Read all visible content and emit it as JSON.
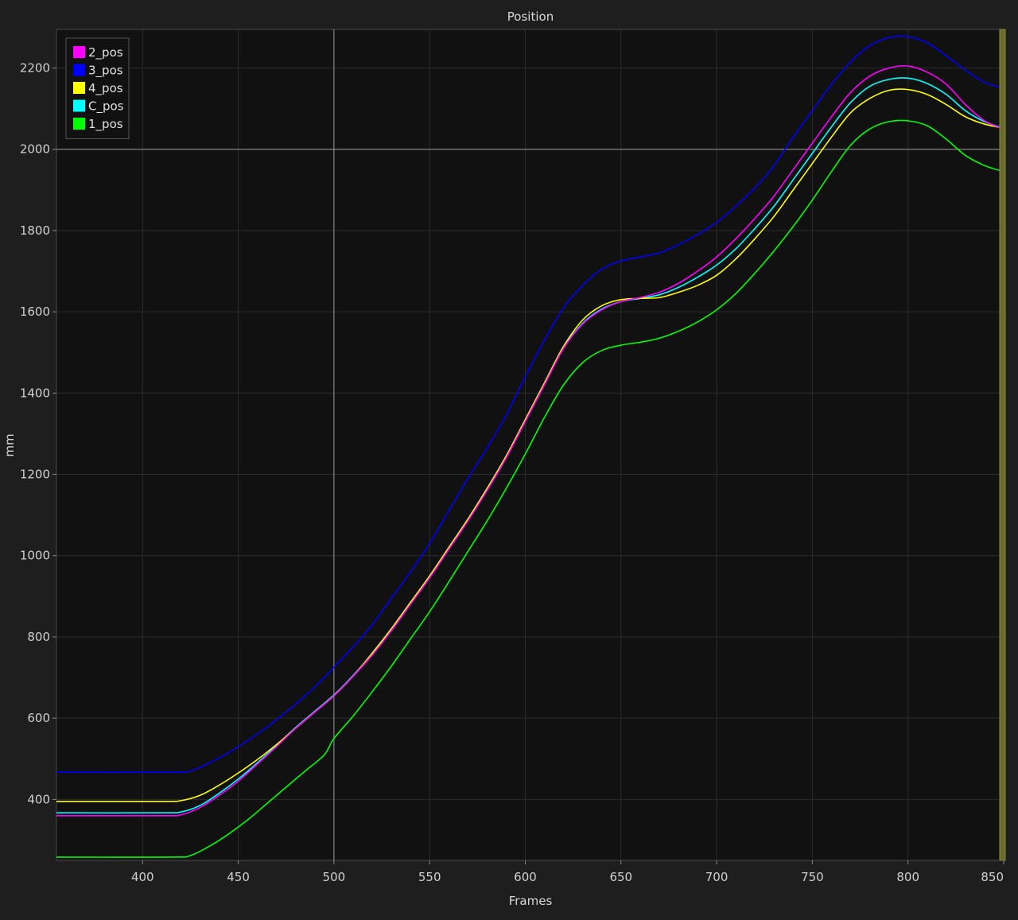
{
  "chart_data": {
    "type": "line",
    "title": "Position",
    "xlabel": "Frames",
    "ylabel": "mm",
    "xlim": [
      355,
      850
    ],
    "ylim": [
      250,
      2295
    ],
    "xticks": [
      400,
      450,
      500,
      550,
      600,
      650,
      700,
      750,
      800,
      850
    ],
    "yticks": [
      400,
      600,
      800,
      1000,
      1200,
      1400,
      1600,
      1800,
      2000,
      2200
    ],
    "grid": true,
    "legend_position": "top-left",
    "crosshair": {
      "x": 500,
      "y": 2000
    },
    "series": [
      {
        "name": "2_pos",
        "color": "#ff00ff",
        "points": [
          [
            355,
            360
          ],
          [
            410,
            360
          ],
          [
            420,
            362
          ],
          [
            430,
            380
          ],
          [
            440,
            410
          ],
          [
            450,
            445
          ],
          [
            460,
            487
          ],
          [
            470,
            530
          ],
          [
            480,
            575
          ],
          [
            490,
            615
          ],
          [
            500,
            655
          ],
          [
            510,
            703
          ],
          [
            520,
            755
          ],
          [
            530,
            815
          ],
          [
            540,
            880
          ],
          [
            550,
            945
          ],
          [
            560,
            1015
          ],
          [
            570,
            1085
          ],
          [
            580,
            1160
          ],
          [
            590,
            1240
          ],
          [
            600,
            1330
          ],
          [
            610,
            1420
          ],
          [
            620,
            1510
          ],
          [
            630,
            1570
          ],
          [
            640,
            1605
          ],
          [
            650,
            1625
          ],
          [
            660,
            1635
          ],
          [
            670,
            1648
          ],
          [
            680,
            1670
          ],
          [
            690,
            1700
          ],
          [
            700,
            1735
          ],
          [
            710,
            1780
          ],
          [
            720,
            1830
          ],
          [
            730,
            1885
          ],
          [
            740,
            1950
          ],
          [
            750,
            2015
          ],
          [
            760,
            2080
          ],
          [
            770,
            2140
          ],
          [
            780,
            2180
          ],
          [
            790,
            2200
          ],
          [
            800,
            2205
          ],
          [
            810,
            2190
          ],
          [
            820,
            2160
          ],
          [
            830,
            2110
          ],
          [
            840,
            2070
          ],
          [
            850,
            2050
          ]
        ]
      },
      {
        "name": "3_pos",
        "color": "#0000ff",
        "points": [
          [
            355,
            467
          ],
          [
            415,
            467
          ],
          [
            425,
            470
          ],
          [
            435,
            490
          ],
          [
            445,
            515
          ],
          [
            455,
            545
          ],
          [
            465,
            578
          ],
          [
            475,
            615
          ],
          [
            485,
            655
          ],
          [
            495,
            700
          ],
          [
            500,
            725
          ],
          [
            510,
            775
          ],
          [
            520,
            830
          ],
          [
            530,
            895
          ],
          [
            540,
            960
          ],
          [
            550,
            1030
          ],
          [
            560,
            1110
          ],
          [
            570,
            1190
          ],
          [
            580,
            1265
          ],
          [
            590,
            1345
          ],
          [
            600,
            1440
          ],
          [
            610,
            1530
          ],
          [
            620,
            1610
          ],
          [
            630,
            1665
          ],
          [
            640,
            1705
          ],
          [
            650,
            1725
          ],
          [
            660,
            1735
          ],
          [
            670,
            1745
          ],
          [
            680,
            1765
          ],
          [
            690,
            1790
          ],
          [
            700,
            1820
          ],
          [
            710,
            1860
          ],
          [
            720,
            1905
          ],
          [
            730,
            1960
          ],
          [
            740,
            2030
          ],
          [
            750,
            2095
          ],
          [
            760,
            2160
          ],
          [
            770,
            2215
          ],
          [
            780,
            2255
          ],
          [
            790,
            2275
          ],
          [
            800,
            2277
          ],
          [
            810,
            2262
          ],
          [
            820,
            2230
          ],
          [
            830,
            2195
          ],
          [
            840,
            2165
          ],
          [
            850,
            2150
          ]
        ]
      },
      {
        "name": "4_pos",
        "color": "#ffff00",
        "points": [
          [
            355,
            395
          ],
          [
            410,
            395
          ],
          [
            420,
            397
          ],
          [
            430,
            410
          ],
          [
            440,
            435
          ],
          [
            450,
            465
          ],
          [
            460,
            498
          ],
          [
            470,
            535
          ],
          [
            480,
            575
          ],
          [
            490,
            615
          ],
          [
            500,
            655
          ],
          [
            510,
            703
          ],
          [
            520,
            760
          ],
          [
            530,
            820
          ],
          [
            540,
            885
          ],
          [
            550,
            950
          ],
          [
            560,
            1020
          ],
          [
            570,
            1090
          ],
          [
            580,
            1165
          ],
          [
            590,
            1245
          ],
          [
            600,
            1335
          ],
          [
            610,
            1425
          ],
          [
            620,
            1515
          ],
          [
            630,
            1580
          ],
          [
            640,
            1615
          ],
          [
            650,
            1630
          ],
          [
            660,
            1633
          ],
          [
            670,
            1635
          ],
          [
            680,
            1648
          ],
          [
            690,
            1665
          ],
          [
            700,
            1690
          ],
          [
            710,
            1730
          ],
          [
            720,
            1780
          ],
          [
            730,
            1835
          ],
          [
            740,
            1900
          ],
          [
            750,
            1965
          ],
          [
            760,
            2030
          ],
          [
            770,
            2090
          ],
          [
            780,
            2125
          ],
          [
            790,
            2145
          ],
          [
            800,
            2147
          ],
          [
            810,
            2135
          ],
          [
            820,
            2110
          ],
          [
            830,
            2080
          ],
          [
            840,
            2062
          ],
          [
            850,
            2052
          ]
        ]
      },
      {
        "name": "C_pos",
        "color": "#00ffff",
        "points": [
          [
            355,
            367
          ],
          [
            410,
            367
          ],
          [
            420,
            369
          ],
          [
            430,
            385
          ],
          [
            440,
            415
          ],
          [
            450,
            450
          ],
          [
            460,
            490
          ],
          [
            470,
            533
          ],
          [
            480,
            577
          ],
          [
            490,
            617
          ],
          [
            500,
            657
          ],
          [
            510,
            705
          ],
          [
            520,
            758
          ],
          [
            530,
            818
          ],
          [
            540,
            882
          ],
          [
            550,
            948
          ],
          [
            560,
            1018
          ],
          [
            570,
            1088
          ],
          [
            580,
            1163
          ],
          [
            590,
            1243
          ],
          [
            600,
            1333
          ],
          [
            610,
            1423
          ],
          [
            620,
            1512
          ],
          [
            630,
            1572
          ],
          [
            640,
            1607
          ],
          [
            650,
            1625
          ],
          [
            660,
            1633
          ],
          [
            670,
            1642
          ],
          [
            680,
            1660
          ],
          [
            690,
            1685
          ],
          [
            700,
            1715
          ],
          [
            710,
            1755
          ],
          [
            720,
            1805
          ],
          [
            730,
            1860
          ],
          [
            740,
            1925
          ],
          [
            750,
            1990
          ],
          [
            760,
            2055
          ],
          [
            770,
            2115
          ],
          [
            780,
            2155
          ],
          [
            790,
            2172
          ],
          [
            800,
            2175
          ],
          [
            810,
            2162
          ],
          [
            820,
            2135
          ],
          [
            830,
            2095
          ],
          [
            840,
            2068
          ],
          [
            850,
            2052
          ]
        ]
      },
      {
        "name": "1_pos",
        "color": "#00ff00",
        "points": [
          [
            355,
            258
          ],
          [
            415,
            258
          ],
          [
            425,
            262
          ],
          [
            435,
            285
          ],
          [
            445,
            315
          ],
          [
            455,
            350
          ],
          [
            465,
            390
          ],
          [
            475,
            430
          ],
          [
            485,
            470
          ],
          [
            495,
            510
          ],
          [
            500,
            550
          ],
          [
            510,
            605
          ],
          [
            520,
            665
          ],
          [
            530,
            728
          ],
          [
            540,
            795
          ],
          [
            550,
            862
          ],
          [
            560,
            935
          ],
          [
            570,
            1010
          ],
          [
            580,
            1085
          ],
          [
            590,
            1165
          ],
          [
            600,
            1250
          ],
          [
            610,
            1340
          ],
          [
            620,
            1420
          ],
          [
            630,
            1475
          ],
          [
            640,
            1505
          ],
          [
            650,
            1518
          ],
          [
            660,
            1525
          ],
          [
            670,
            1535
          ],
          [
            680,
            1552
          ],
          [
            690,
            1575
          ],
          [
            700,
            1605
          ],
          [
            710,
            1645
          ],
          [
            720,
            1695
          ],
          [
            730,
            1750
          ],
          [
            740,
            1810
          ],
          [
            750,
            1875
          ],
          [
            760,
            1945
          ],
          [
            770,
            2010
          ],
          [
            780,
            2050
          ],
          [
            790,
            2068
          ],
          [
            800,
            2070
          ],
          [
            810,
            2058
          ],
          [
            820,
            2025
          ],
          [
            830,
            1985
          ],
          [
            840,
            1960
          ],
          [
            850,
            1945
          ]
        ]
      }
    ]
  }
}
